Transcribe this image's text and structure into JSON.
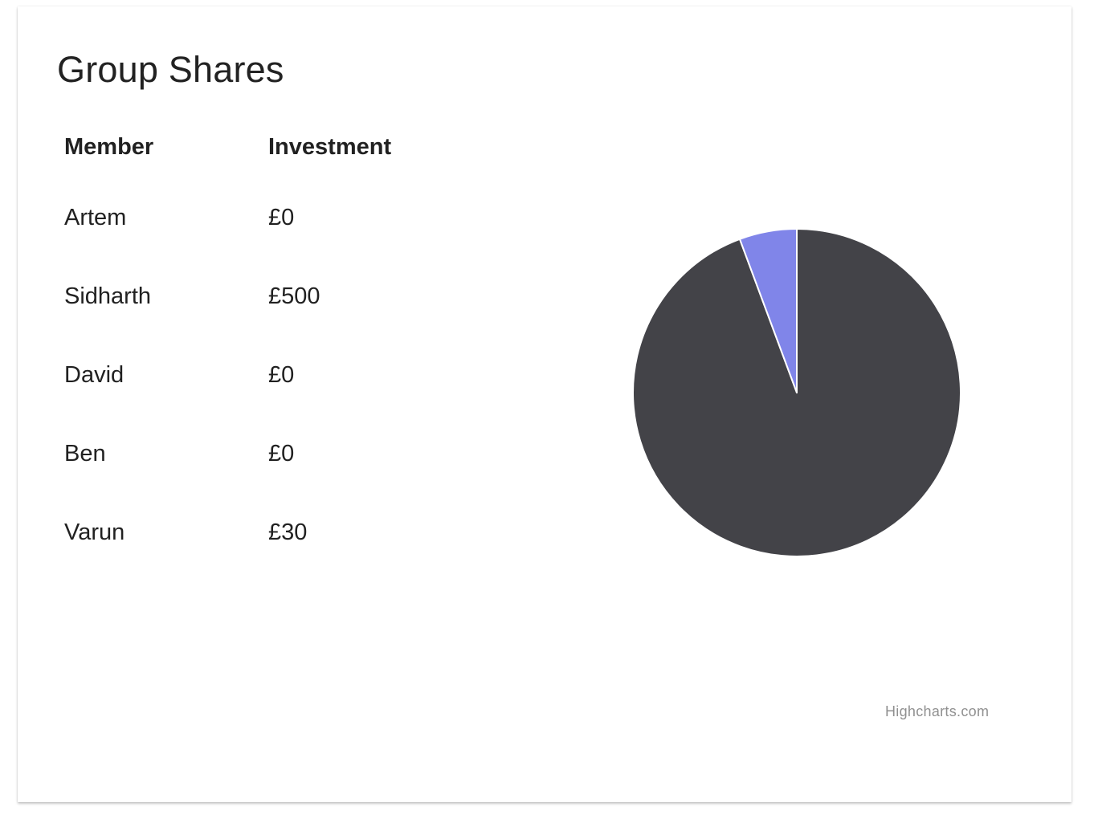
{
  "card": {
    "title": "Group Shares"
  },
  "table": {
    "headers": {
      "member": "Member",
      "investment": "Investment"
    },
    "rows": [
      {
        "member": "Artem",
        "investment": "£0"
      },
      {
        "member": "Sidharth",
        "investment": "£500"
      },
      {
        "member": "David",
        "investment": "£0"
      },
      {
        "member": "Ben",
        "investment": "£0"
      },
      {
        "member": "Varun",
        "investment": "£30"
      }
    ]
  },
  "chart": {
    "credits": "Highcharts.com"
  },
  "chart_data": {
    "type": "pie",
    "categories": [
      "Artem",
      "Sidharth",
      "David",
      "Ben",
      "Varun"
    ],
    "values": [
      0,
      500,
      0,
      0,
      30
    ],
    "colors": [
      "#7cb5ec",
      "#434348",
      "#90ed7d",
      "#f7a35c",
      "#8085e9"
    ],
    "slice_border_color": "#ffffff",
    "legend": "none",
    "data_labels": false
  }
}
